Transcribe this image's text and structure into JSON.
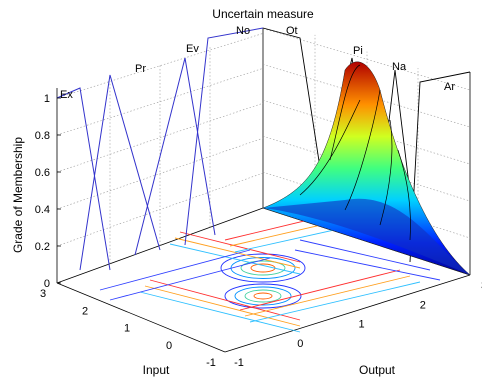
{
  "chart_data": {
    "type": "surface",
    "title": "Uncertain measure",
    "xlabel": "Input",
    "ylabel": "Output",
    "zlabel": "Grade of Membership",
    "input_ticks": [
      "3",
      "2",
      "1",
      "0",
      "-1"
    ],
    "output_ticks": [
      "-1",
      "0",
      "1",
      "2",
      "3"
    ],
    "z_ticks": [
      "0",
      "0.2",
      "0.4",
      "0.6",
      "0.8",
      "1"
    ],
    "zlim": [
      0,
      1
    ],
    "grid": true,
    "membership_functions": [
      {
        "name": "Ex",
        "series": "blue"
      },
      {
        "name": "Pr",
        "series": "blue"
      },
      {
        "name": "Ev",
        "series": "blue"
      },
      {
        "name": "No",
        "series": "black"
      },
      {
        "name": "Ot",
        "series": "black"
      },
      {
        "name": "Pi",
        "series": "black"
      },
      {
        "name": "Na",
        "series": "black"
      },
      {
        "name": "Ar",
        "series": "black"
      }
    ],
    "colors": {
      "blue_mf": "#3333cc",
      "black_mf": "#000000",
      "colormap": "jet"
    }
  }
}
